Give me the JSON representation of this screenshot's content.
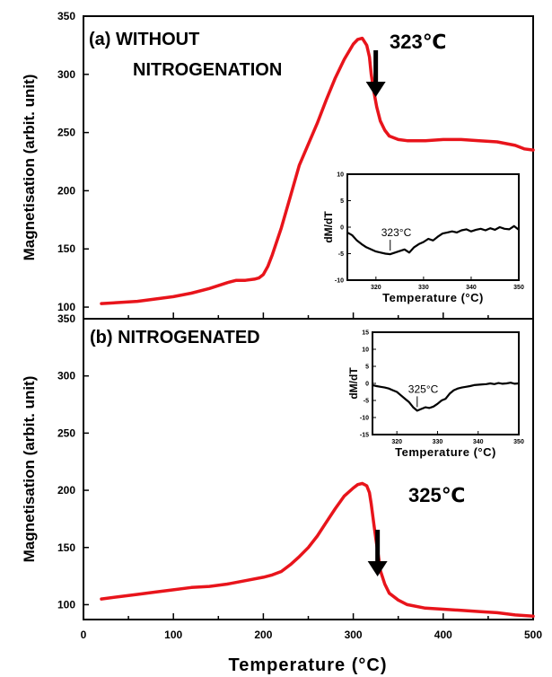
{
  "chart_data": [
    {
      "type": "line",
      "panel": "a",
      "label": "(a) WITHOUT",
      "label_line2": "NITROGENATION",
      "ylabel": "Magnetisation (arbit. unit)",
      "xlabel": "",
      "xlim": [
        0,
        500
      ],
      "ylim": [
        90,
        350
      ],
      "yticks": [
        "100",
        "150",
        "200",
        "250",
        "300",
        "350"
      ],
      "annotation": "323℃",
      "annotation_x": 323,
      "color": "#e8141b",
      "series": [
        {
          "x": [
            20,
            40,
            60,
            80,
            100,
            120,
            140,
            160,
            170,
            180,
            190,
            195,
            200,
            205,
            210,
            220,
            230,
            240,
            250,
            260,
            270,
            280,
            290,
            300,
            305,
            310,
            315,
            318,
            320,
            323,
            326,
            330,
            335,
            340,
            350,
            360,
            380,
            400,
            420,
            440,
            460,
            480,
            490,
            500
          ],
          "y": [
            103,
            104,
            105,
            107,
            109,
            112,
            116,
            121,
            123,
            123,
            124,
            125,
            128,
            135,
            145,
            168,
            195,
            222,
            240,
            258,
            278,
            297,
            313,
            326,
            330,
            331,
            325,
            315,
            300,
            285,
            272,
            260,
            252,
            247,
            244,
            243,
            243,
            244,
            244,
            243,
            242,
            239,
            236,
            235
          ]
        }
      ],
      "inset": {
        "xlabel": "Temperature (°C)",
        "ylabel": "dM/dT",
        "xlim": [
          314,
          350
        ],
        "ylim": [
          -10,
          10
        ],
        "xticks": [
          "320",
          "330",
          "340",
          "350"
        ],
        "yticks": [
          "10",
          "5",
          "0",
          "-5",
          "-10"
        ],
        "annotation": "323°C",
        "annotation_x": 323,
        "x": [
          314,
          315,
          316,
          317,
          318,
          319,
          320,
          321,
          322,
          323,
          324,
          325,
          326,
          327,
          328,
          329,
          330,
          331,
          332,
          333,
          334,
          335,
          336,
          337,
          338,
          339,
          340,
          341,
          342,
          343,
          344,
          345,
          346,
          347,
          348,
          349,
          350
        ],
        "y": [
          -1,
          -1.5,
          -2.5,
          -3.2,
          -3.8,
          -4.2,
          -4.6,
          -4.8,
          -5,
          -5.1,
          -4.8,
          -4.5,
          -4.2,
          -4.8,
          -3.8,
          -3.2,
          -2.8,
          -2.2,
          -2.5,
          -1.8,
          -1.2,
          -1,
          -0.8,
          -1,
          -0.6,
          -0.4,
          -0.8,
          -0.5,
          -0.3,
          -0.6,
          -0.2,
          -0.5,
          0,
          -0.3,
          -0.4,
          0.2,
          -0.5
        ]
      }
    },
    {
      "type": "line",
      "panel": "b",
      "label": "(b) NITROGENATED",
      "ylabel": "Magnetisation (arbit. unit)",
      "xlabel": "Temperature (°C)",
      "xlim": [
        0,
        500
      ],
      "ylim": [
        87,
        350
      ],
      "yticks": [
        "100",
        "150",
        "200",
        "250",
        "300",
        "350"
      ],
      "xticks": [
        "0",
        "100",
        "200",
        "300",
        "400",
        "500"
      ],
      "annotation": "325℃",
      "annotation_x": 325,
      "color": "#e8141b",
      "series": [
        {
          "x": [
            20,
            40,
            60,
            80,
            100,
            120,
            140,
            160,
            180,
            200,
            210,
            220,
            230,
            240,
            250,
            260,
            270,
            280,
            290,
            300,
            305,
            310,
            315,
            318,
            320,
            323,
            325,
            328,
            330,
            335,
            340,
            350,
            360,
            380,
            400,
            420,
            440,
            460,
            480,
            500
          ],
          "y": [
            105,
            107,
            109,
            111,
            113,
            115,
            116,
            118,
            121,
            124,
            126,
            129,
            135,
            142,
            150,
            160,
            172,
            184,
            195,
            202,
            205,
            206,
            204,
            198,
            188,
            170,
            158,
            142,
            130,
            118,
            110,
            104,
            100,
            97,
            96,
            95,
            94,
            93,
            91,
            90
          ]
        }
      ],
      "inset": {
        "xlabel": "Temperature (°C)",
        "ylabel": "dM/dT",
        "xlim": [
          314,
          350
        ],
        "ylim": [
          -15,
          15
        ],
        "xticks": [
          "320",
          "330",
          "340",
          "350"
        ],
        "yticks": [
          "15",
          "10",
          "5",
          "0",
          "-5",
          "-10",
          "-15"
        ],
        "annotation": "325°C",
        "annotation_x": 325,
        "x": [
          314,
          315,
          316,
          317,
          318,
          319,
          320,
          321,
          322,
          323,
          324,
          325,
          326,
          327,
          328,
          329,
          330,
          331,
          332,
          333,
          334,
          335,
          336,
          337,
          338,
          339,
          340,
          341,
          342,
          343,
          344,
          345,
          346,
          347,
          348,
          349,
          350
        ],
        "y": [
          -0.5,
          -0.8,
          -1,
          -1.2,
          -1.5,
          -2,
          -2.5,
          -3.5,
          -4.5,
          -5.5,
          -7,
          -8,
          -7.5,
          -7,
          -7.2,
          -6.8,
          -6,
          -5,
          -4.5,
          -3,
          -2,
          -1.5,
          -1.2,
          -1,
          -0.8,
          -0.5,
          -0.4,
          -0.3,
          -0.2,
          0,
          -0.2,
          0.1,
          -0.1,
          0,
          0.2,
          -0.1,
          0
        ]
      }
    }
  ]
}
